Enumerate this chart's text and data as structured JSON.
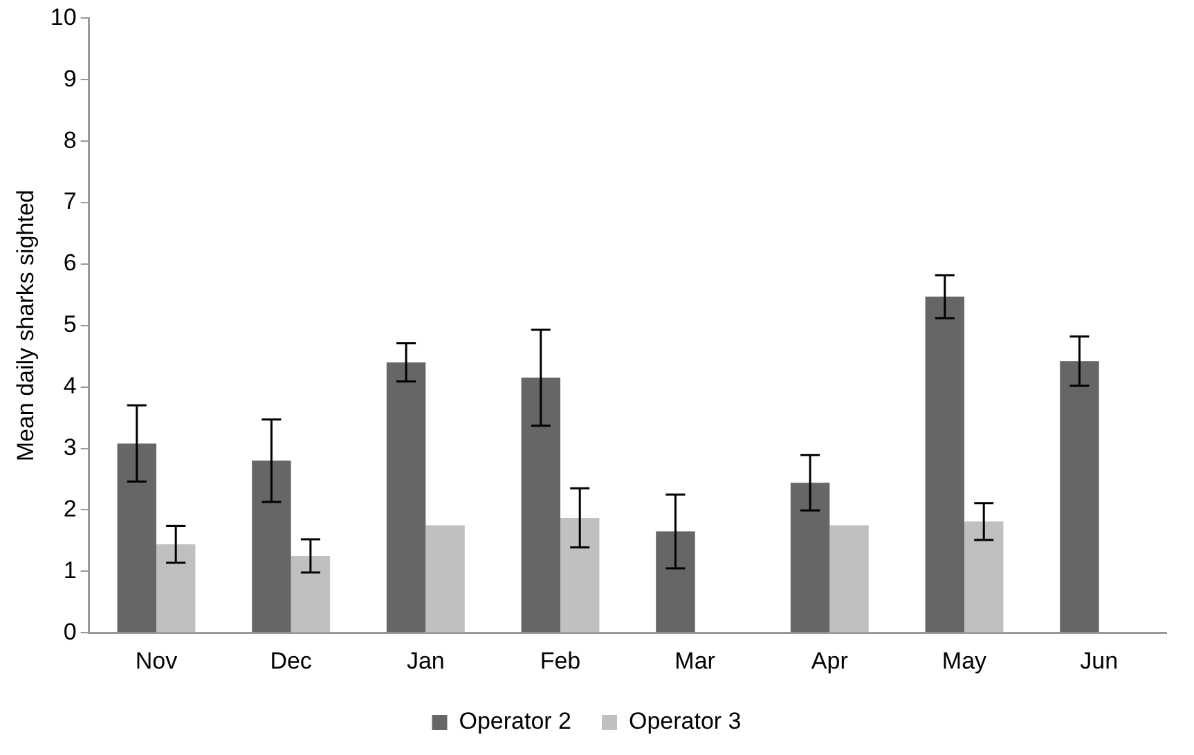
{
  "chart_data": {
    "type": "bar",
    "ylabel": "Mean daily sharks sighted",
    "categories": [
      "Nov",
      "Dec",
      "Jan",
      "Feb",
      "Mar",
      "Apr",
      "May",
      "Jun"
    ],
    "series": [
      {
        "name": "Operator 2",
        "color": "#666666",
        "values": [
          3.08,
          2.8,
          4.4,
          4.15,
          1.65,
          2.44,
          5.47,
          4.42
        ],
        "errors": [
          0.62,
          0.67,
          0.31,
          0.78,
          0.6,
          0.45,
          0.35,
          0.4
        ]
      },
      {
        "name": "Operator 3",
        "color": "#c0c0c0",
        "values": [
          1.44,
          1.25,
          1.75,
          1.87,
          null,
          1.75,
          1.81,
          null
        ],
        "errors": [
          0.3,
          0.27,
          null,
          0.48,
          null,
          null,
          0.3,
          null
        ]
      }
    ],
    "ylim": [
      0,
      10
    ],
    "yticks": [
      0,
      1,
      2,
      3,
      4,
      5,
      6,
      7,
      8,
      9,
      10
    ],
    "grid": false,
    "legend": "bottom"
  }
}
